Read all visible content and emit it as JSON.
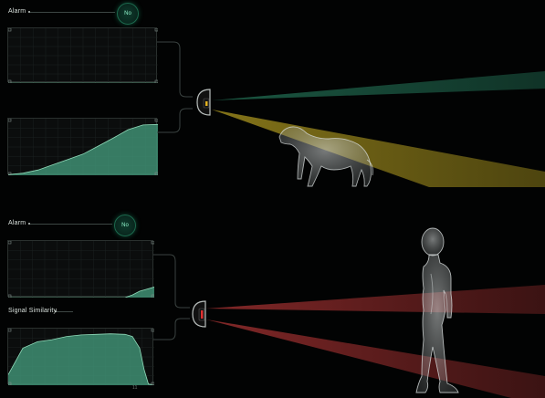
{
  "top": {
    "alarm_label": "Alarm",
    "badge": "No"
  },
  "bottom": {
    "alarm_label": "Alarm",
    "badge": "No",
    "signal_label": "Signal Similarity",
    "bottom_tick": "11"
  },
  "icons": {
    "top_sensor": "sensor-icon",
    "bottom_sensor": "sensor-icon",
    "dog": "dog-icon",
    "person": "person-icon"
  },
  "colors": {
    "beam_green": "#1c5b45",
    "beam_yellow": "#8b7a1a",
    "beam_red": "#8a2a2a",
    "area_fill": "#3f8f73",
    "area_stroke": "#8fd9b8",
    "sensor_yellow": "#e0b020",
    "sensor_red": "#e03030"
  },
  "chart_data": [
    {
      "type": "area",
      "x": [
        0,
        10,
        20,
        30,
        40,
        50,
        60,
        70,
        80,
        90,
        100
      ],
      "values": [
        0,
        0,
        0,
        0,
        0,
        0,
        0,
        0,
        0,
        0,
        0
      ]
    },
    {
      "type": "area",
      "x": [
        0,
        10,
        20,
        30,
        40,
        50,
        60,
        70,
        80,
        90,
        100
      ],
      "values": [
        1,
        4,
        10,
        20,
        30,
        40,
        55,
        70,
        86,
        95,
        96
      ]
    },
    {
      "type": "area",
      "x": [
        0,
        10,
        20,
        30,
        40,
        50,
        60,
        70,
        80,
        85,
        90,
        95,
        100
      ],
      "values": [
        0,
        0,
        0,
        0,
        0,
        0,
        0,
        0,
        0,
        5,
        12,
        16,
        20
      ]
    },
    {
      "type": "area",
      "x": [
        0,
        5,
        10,
        20,
        30,
        40,
        50,
        60,
        70,
        80,
        85,
        90,
        93,
        96,
        100
      ],
      "values": [
        20,
        45,
        70,
        82,
        86,
        92,
        95,
        96,
        97,
        96,
        92,
        70,
        30,
        2,
        0
      ]
    }
  ]
}
